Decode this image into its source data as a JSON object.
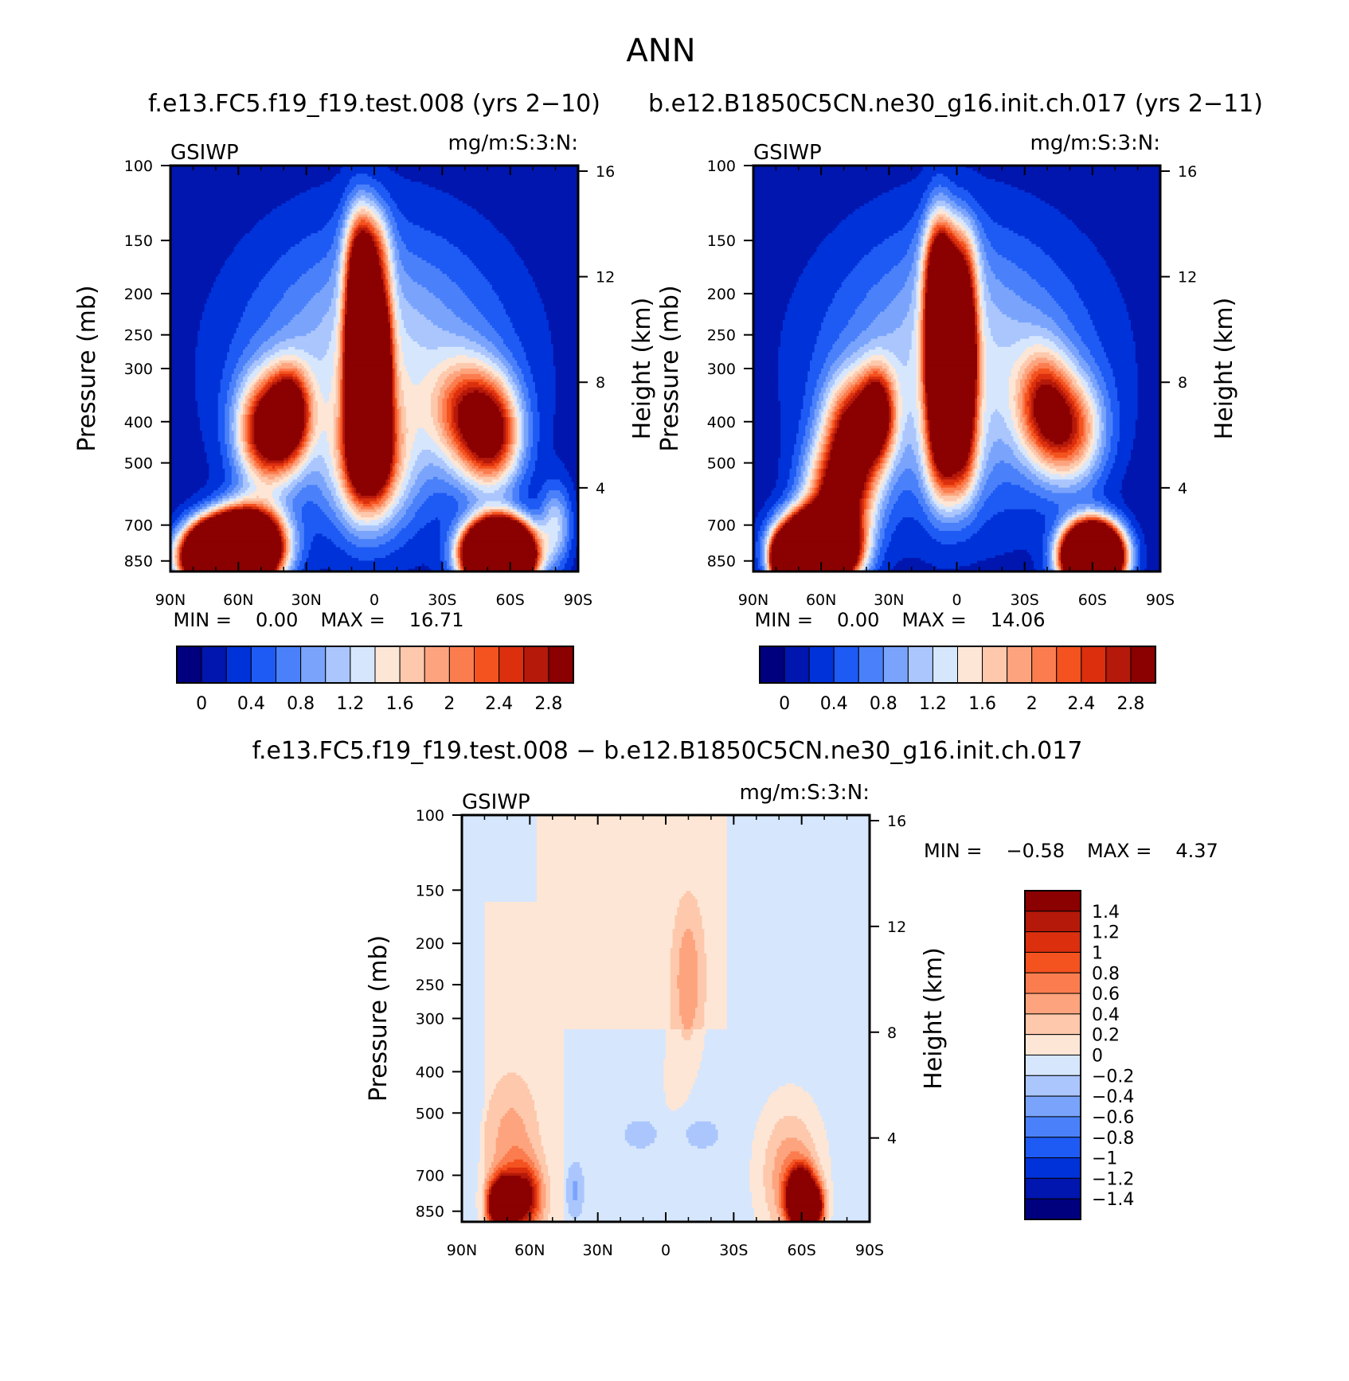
{
  "figure": {
    "main_title": "ANN",
    "diff_title": "f.e13.FC5.f19_f19.test.008 − b.e12.B1850C5CN.ne30_g16.init.ch.017"
  },
  "colors": {
    "main": [
      "#00007f",
      "#0016ae",
      "#0032d9",
      "#1e5af4",
      "#4a81fa",
      "#7aa4fc",
      "#aac6fd",
      "#d6e6fd",
      "#fde6d5",
      "#fdc8ac",
      "#fda47e",
      "#fb7d4f",
      "#f4521f",
      "#db2f0e",
      "#b5190a",
      "#8b0000"
    ],
    "diff": [
      "#00007f",
      "#0016ae",
      "#0032d9",
      "#1e5af4",
      "#4a81fa",
      "#7aa4fc",
      "#aac6fd",
      "#d6e6fd",
      "#fde6d5",
      "#fdc8ac",
      "#fda47e",
      "#fb7d4f",
      "#f4521f",
      "#db2f0e",
      "#b5190a",
      "#8b0000"
    ]
  },
  "chart_data": [
    {
      "type": "heatmap",
      "title": "f.e13.FC5.f19_f19.test.008 (yrs 2−10)",
      "variable": "GSIWP",
      "units": "mg/m:S:3:N:",
      "xlabel": "",
      "ylabel": "Pressure (mb)",
      "ylabel_right": "Height (km)",
      "x_ticks": [
        "90N",
        "60N",
        "30N",
        "0",
        "30S",
        "60S",
        "90S"
      ],
      "y_ticks": [
        "100",
        "150",
        "200",
        "250",
        "300",
        "400",
        "500",
        "700",
        "850"
      ],
      "y_ticks_right": [
        "16",
        "12",
        "8",
        "4"
      ],
      "xlim": [
        90,
        -90
      ],
      "ylim": [
        100,
        900
      ],
      "y_scale": "log",
      "stats": {
        "min_label": "MIN =",
        "min": "0.00",
        "max_label": "MAX =",
        "max": "16.71"
      },
      "colorbar": {
        "orientation": "horizontal",
        "labels": [
          "0",
          "0.4",
          "0.8",
          "1.2",
          "1.6",
          "2",
          "2.4",
          "2.8"
        ],
        "levels": [
          0,
          0.2,
          0.4,
          0.6,
          0.8,
          1.0,
          1.2,
          1.4,
          1.6,
          1.8,
          2.0,
          2.2,
          2.4,
          2.6,
          2.8
        ]
      },
      "field": {
        "background": 0.05,
        "features": [
          {
            "lat": 67,
            "p": 830,
            "val": 14.0,
            "sx": 10,
            "sy": 0.11
          },
          {
            "lat": 55,
            "p": 780,
            "val": 6.0,
            "sx": 10,
            "sy": 0.13
          },
          {
            "lat": 47,
            "p": 420,
            "val": 3.0,
            "sx": 9,
            "sy": 0.2
          },
          {
            "lat": 37,
            "p": 380,
            "val": 2.4,
            "sx": 6,
            "sy": 0.16
          },
          {
            "lat": 7,
            "p": 270,
            "val": 4.8,
            "sx": 4,
            "sy": 0.35
          },
          {
            "lat": -3,
            "p": 290,
            "val": 3.2,
            "sx": 3.5,
            "sy": 0.3
          },
          {
            "lat": 3,
            "p": 160,
            "val": 2.0,
            "sx": 6,
            "sy": 0.18
          },
          {
            "lat": 2,
            "p": 470,
            "val": 2.0,
            "sx": 6,
            "sy": 0.18
          },
          {
            "lat": 2,
            "p": 500,
            "val": 1.6,
            "sx": 12,
            "sy": 0.25
          },
          {
            "lat": -55,
            "p": 820,
            "val": 14.0,
            "sx": 9,
            "sy": 0.11
          },
          {
            "lat": -52,
            "p": 430,
            "val": 2.5,
            "sx": 9,
            "sy": 0.2
          },
          {
            "lat": -40,
            "p": 380,
            "val": 1.6,
            "sx": 10,
            "sy": 0.2
          },
          {
            "lat": 0,
            "p": 300,
            "val": 1.3,
            "sx": 38,
            "sy": 0.5
          },
          {
            "lat": -80,
            "p": 700,
            "val": 1.1,
            "sx": 5,
            "sy": 0.15
          }
        ]
      }
    },
    {
      "type": "heatmap",
      "title": "b.e12.B1850C5CN.ne30_g16.init.ch.017 (yrs 2−11)",
      "variable": "GSIWP",
      "units": "mg/m:S:3:N:",
      "xlabel": "",
      "ylabel": "Pressure (mb)",
      "ylabel_right": "Height (km)",
      "x_ticks": [
        "90N",
        "60N",
        "30N",
        "0",
        "30S",
        "60S",
        "90S"
      ],
      "y_ticks": [
        "100",
        "150",
        "200",
        "250",
        "300",
        "400",
        "500",
        "700",
        "850"
      ],
      "y_ticks_right": [
        "16",
        "12",
        "8",
        "4"
      ],
      "xlim": [
        90,
        -90
      ],
      "ylim": [
        100,
        900
      ],
      "y_scale": "log",
      "stats": {
        "min_label": "MIN =",
        "min": "0.00",
        "max_label": "MAX =",
        "max": "14.06"
      },
      "colorbar": {
        "orientation": "horizontal",
        "labels": [
          "0",
          "0.4",
          "0.8",
          "1.2",
          "1.6",
          "2",
          "2.4",
          "2.8"
        ],
        "levels": [
          0,
          0.2,
          0.4,
          0.6,
          0.8,
          1.0,
          1.2,
          1.4,
          1.6,
          1.8,
          2.0,
          2.2,
          2.4,
          2.6,
          2.8
        ]
      },
      "field": {
        "background": 0.05,
        "features": [
          {
            "lat": 62,
            "p": 800,
            "val": 12.0,
            "sx": 10,
            "sy": 0.12
          },
          {
            "lat": 78,
            "p": 850,
            "val": 4.0,
            "sx": 3,
            "sy": 0.08
          },
          {
            "lat": 52,
            "p": 600,
            "val": 3.0,
            "sx": 10,
            "sy": 0.2
          },
          {
            "lat": 45,
            "p": 420,
            "val": 2.6,
            "sx": 9,
            "sy": 0.2
          },
          {
            "lat": 35,
            "p": 380,
            "val": 2.2,
            "sx": 5,
            "sy": 0.16
          },
          {
            "lat": 8,
            "p": 260,
            "val": 5.0,
            "sx": 4,
            "sy": 0.35
          },
          {
            "lat": -4,
            "p": 280,
            "val": 3.5,
            "sx": 3.5,
            "sy": 0.3
          },
          {
            "lat": 3,
            "p": 170,
            "val": 2.0,
            "sx": 7,
            "sy": 0.18
          },
          {
            "lat": 2,
            "p": 480,
            "val": 2.1,
            "sx": 7,
            "sy": 0.2
          },
          {
            "lat": -60,
            "p": 830,
            "val": 12.0,
            "sx": 8,
            "sy": 0.11
          },
          {
            "lat": -50,
            "p": 420,
            "val": 2.0,
            "sx": 10,
            "sy": 0.2
          },
          {
            "lat": -38,
            "p": 360,
            "val": 1.7,
            "sx": 8,
            "sy": 0.2
          },
          {
            "lat": 0,
            "p": 300,
            "val": 1.3,
            "sx": 38,
            "sy": 0.5
          }
        ]
      }
    },
    {
      "type": "heatmap",
      "title": "f.e13.FC5.f19_f19.test.008 − b.e12.B1850C5CN.ne30_g16.init.ch.017",
      "variable": "GSIWP",
      "units": "mg/m:S:3:N:",
      "xlabel": "",
      "ylabel": "Pressure (mb)",
      "ylabel_right": "Height (km)",
      "x_ticks": [
        "90N",
        "60N",
        "30N",
        "0",
        "30S",
        "60S",
        "90S"
      ],
      "y_ticks": [
        "100",
        "150",
        "200",
        "250",
        "300",
        "400",
        "500",
        "700",
        "850"
      ],
      "y_ticks_right": [
        "16",
        "12",
        "8",
        "4"
      ],
      "xlim": [
        90,
        -90
      ],
      "ylim": [
        100,
        900
      ],
      "y_scale": "log",
      "stats": {
        "min_label": "MIN =",
        "min": "−0.58",
        "max_label": "MAX =",
        "max": "4.37"
      },
      "colorbar": {
        "orientation": "vertical",
        "labels": [
          "1.4",
          "1.2",
          "1",
          "0.8",
          "0.6",
          "0.4",
          "0.2",
          "0",
          "−0.2",
          "−0.4",
          "−0.6",
          "−0.8",
          "−1",
          "−1.2",
          "−1.4"
        ],
        "levels": [
          -1.4,
          -1.2,
          -1.0,
          -0.8,
          -0.6,
          -0.4,
          -0.2,
          0,
          0.2,
          0.4,
          0.6,
          0.8,
          1.0,
          1.2,
          1.4
        ]
      },
      "field": {
        "background": 0.05,
        "regions": [
          {
            "lat_from": 90,
            "lat_to": 57,
            "p_from": 100,
            "p_to": 160,
            "val": -0.1
          },
          {
            "lat_from": -27,
            "lat_to": -90,
            "p_from": 100,
            "p_to": 900,
            "val": -0.1
          },
          {
            "lat_from": 90,
            "lat_to": 80,
            "p_from": 100,
            "p_to": 900,
            "val": -0.1
          },
          {
            "lat_from": 45,
            "lat_to": -27,
            "p_from": 320,
            "p_to": 900,
            "val": -0.1
          }
        ],
        "features": [
          {
            "lat": 72,
            "p": 820,
            "val": 3.5,
            "sx": 4,
            "sy": 0.09
          },
          {
            "lat": 62,
            "p": 790,
            "val": 1.4,
            "sx": 5,
            "sy": 0.12
          },
          {
            "lat": 68,
            "p": 620,
            "val": 0.5,
            "sx": 8,
            "sy": 0.28
          },
          {
            "lat": -60,
            "p": 800,
            "val": 4.0,
            "sx": 4,
            "sy": 0.1
          },
          {
            "lat": -55,
            "p": 700,
            "val": 0.7,
            "sx": 9,
            "sy": 0.25
          },
          {
            "lat": -67,
            "p": 830,
            "val": 1.2,
            "sx": 2.5,
            "sy": 0.08
          },
          {
            "lat": -10,
            "p": 240,
            "val": 0.5,
            "sx": 5,
            "sy": 0.3
          },
          {
            "lat": -2,
            "p": 450,
            "val": 0.1,
            "sx": 7,
            "sy": 0.35
          },
          {
            "lat": 40,
            "p": 760,
            "val": -0.35,
            "sx": 2.5,
            "sy": 0.1
          },
          {
            "lat": 10,
            "p": 560,
            "val": -0.25,
            "sx": 6,
            "sy": 0.06
          },
          {
            "lat": -15,
            "p": 560,
            "val": -0.25,
            "sx": 6,
            "sy": 0.06
          }
        ]
      }
    }
  ]
}
